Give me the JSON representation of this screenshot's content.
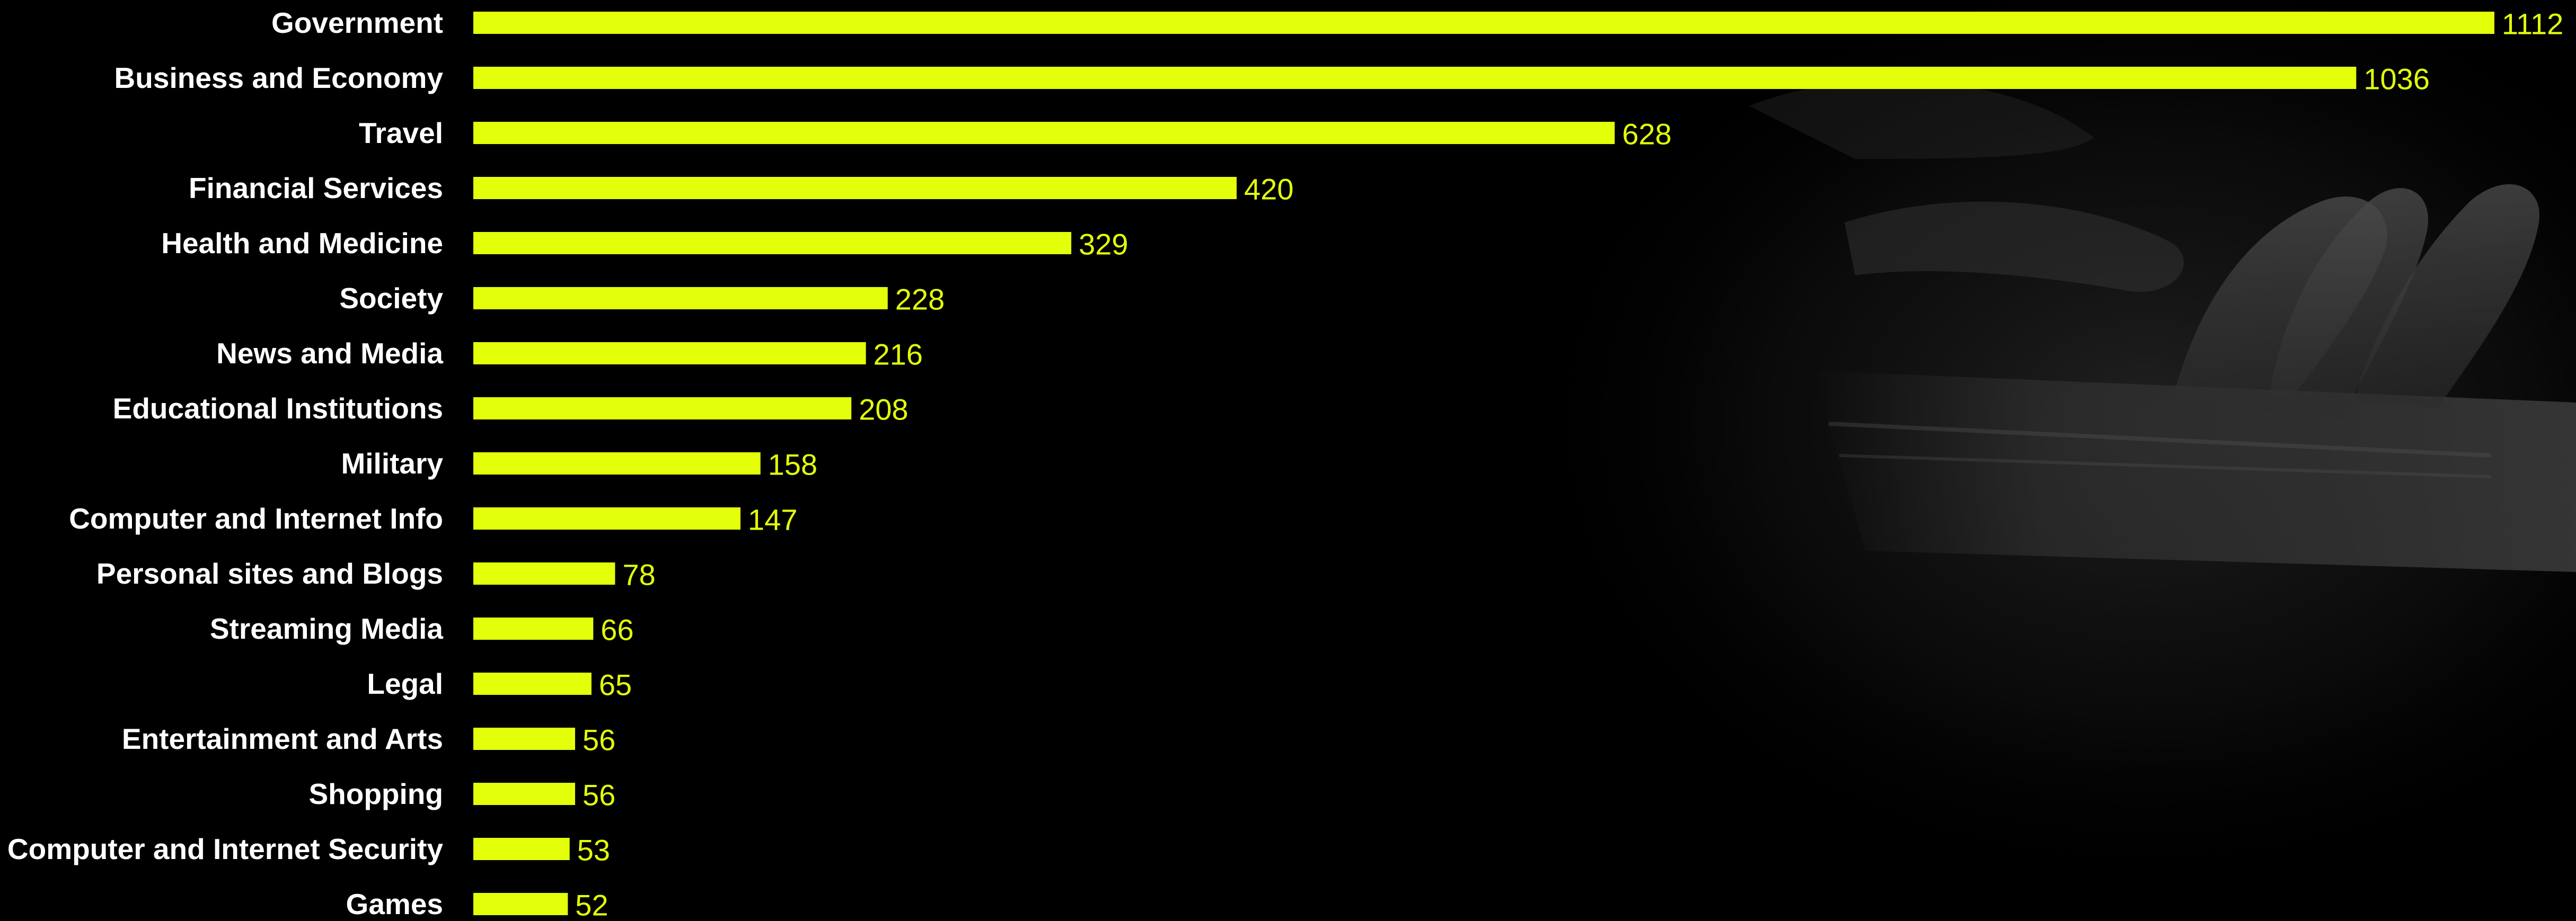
{
  "chart_data": {
    "type": "bar",
    "orientation": "horizontal",
    "categories": [
      "Government",
      "Business and Economy",
      "Travel",
      "Financial Services",
      "Health and Medicine",
      "Society",
      "News and Media",
      "Educational Institutions",
      "Military",
      "Computer and Internet Info",
      "Personal sites and Blogs",
      "Streaming Media",
      "Legal",
      "Entertainment and Arts",
      "Shopping",
      "Computer and Internet Security",
      "Games"
    ],
    "values": [
      1112,
      1036,
      628,
      420,
      329,
      228,
      216,
      208,
      158,
      147,
      78,
      66,
      65,
      56,
      56,
      53,
      52
    ],
    "value_labels": [
      "1112",
      "1036",
      "628",
      "420",
      "329",
      "228",
      "216",
      "208",
      "158",
      "147",
      "78",
      "66",
      "65",
      "56",
      "56",
      "53",
      "52"
    ],
    "xlim": [
      0,
      1112
    ],
    "grid": false,
    "legend": "none",
    "colors": {
      "bar": "#e3ff0a",
      "value_text": "#e3ff0a",
      "category_text": "#ffffff",
      "background": "#000000"
    }
  }
}
